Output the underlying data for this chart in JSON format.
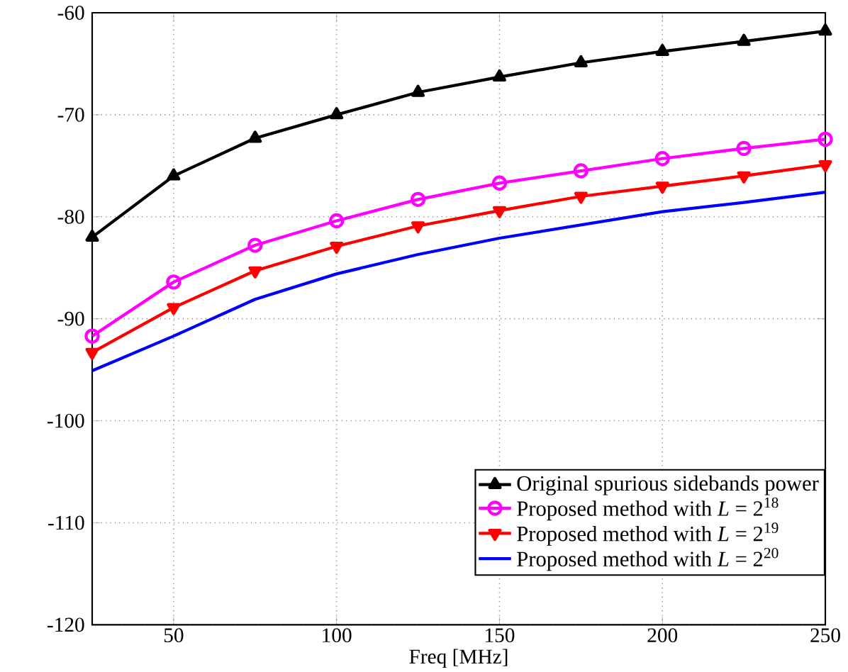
{
  "chart_data": {
    "type": "line",
    "xlabel": "Freq [MHz]",
    "x": [
      25,
      50,
      75,
      100,
      125,
      150,
      175,
      200,
      225,
      250
    ],
    "series": [
      {
        "name": "Original spurious sidebands power",
        "color": "#000000",
        "marker": "triangle",
        "values": [
          -82,
          -76,
          -72.3,
          -70,
          -67.8,
          -66.3,
          -64.9,
          -63.8,
          -62.8,
          -61.8
        ]
      },
      {
        "name": "Proposed method with *L* = 2$^{18}$",
        "color": "#ff00ff",
        "marker": "circle",
        "values": [
          -91.7,
          -86.4,
          -82.8,
          -80.4,
          -78.3,
          -76.7,
          -75.5,
          -74.3,
          -73.3,
          -72.4
        ]
      },
      {
        "name": "Proposed method with *L* = 2$^{19}$",
        "color": "#ff0000",
        "marker": "triangle down",
        "values": [
          -93.3,
          -88.9,
          -85.3,
          -82.9,
          -80.9,
          -79.4,
          -78,
          -77,
          -76,
          -74.9
        ]
      },
      {
        "name": "Proposed method with *L* = 2$^{20}$",
        "color": "#0000ff",
        "marker": "none",
        "values": [
          -95.1,
          -91.7,
          -88.1,
          -85.6,
          -83.7,
          -82.1,
          -80.8,
          -79.5,
          -78.6,
          -77.6
        ]
      }
    ],
    "xlim": [
      25,
      250
    ],
    "ylim": [
      -120,
      -60
    ],
    "xticks": [
      50,
      100,
      150,
      200,
      250
    ],
    "yticks": [
      -120,
      -110,
      -100,
      -90,
      -80,
      -70,
      -60
    ],
    "grid": true,
    "legend": "bottom right",
    "line_style": "solid"
  }
}
